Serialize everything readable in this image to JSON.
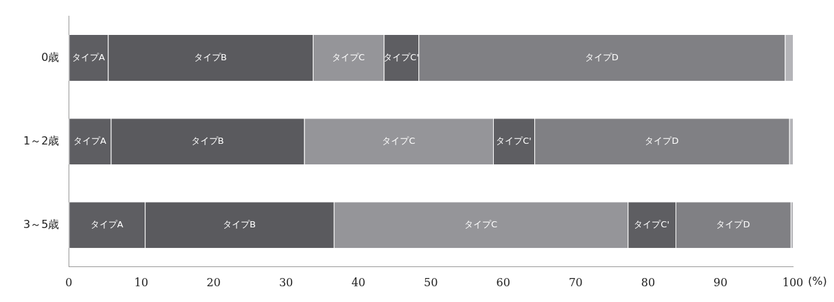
{
  "chart_data": {
    "type": "bar",
    "orientation": "horizontal",
    "stacked": true,
    "xlabel": "(%)",
    "categories": [
      "0歳",
      "1～2歳",
      "3～5歳"
    ],
    "series": [
      {
        "name": "タイプA",
        "color": "#5e5e62",
        "values": [
          5.4,
          5.8,
          10.5
        ]
      },
      {
        "name": "タイプB",
        "color": "#5a5a5e",
        "values": [
          28.3,
          26.7,
          26.1
        ]
      },
      {
        "name": "タイプC",
        "color": "#959599",
        "values": [
          9.8,
          26.1,
          40.6
        ]
      },
      {
        "name": "タイプC'",
        "color": "#5e5e62",
        "values": [
          4.8,
          5.7,
          6.6
        ]
      },
      {
        "name": "タイプD",
        "color": "#808084",
        "values": [
          50.6,
          35.2,
          15.9
        ]
      },
      {
        "color": "#b4b4b8",
        "values": [
          1.1,
          0.5,
          0.3
        ]
      }
    ],
    "xlim": [
      0,
      100
    ],
    "xticks": [
      0,
      10,
      20,
      30,
      40,
      50,
      60,
      70,
      80,
      90,
      100
    ],
    "grid": false,
    "legend": false
  }
}
